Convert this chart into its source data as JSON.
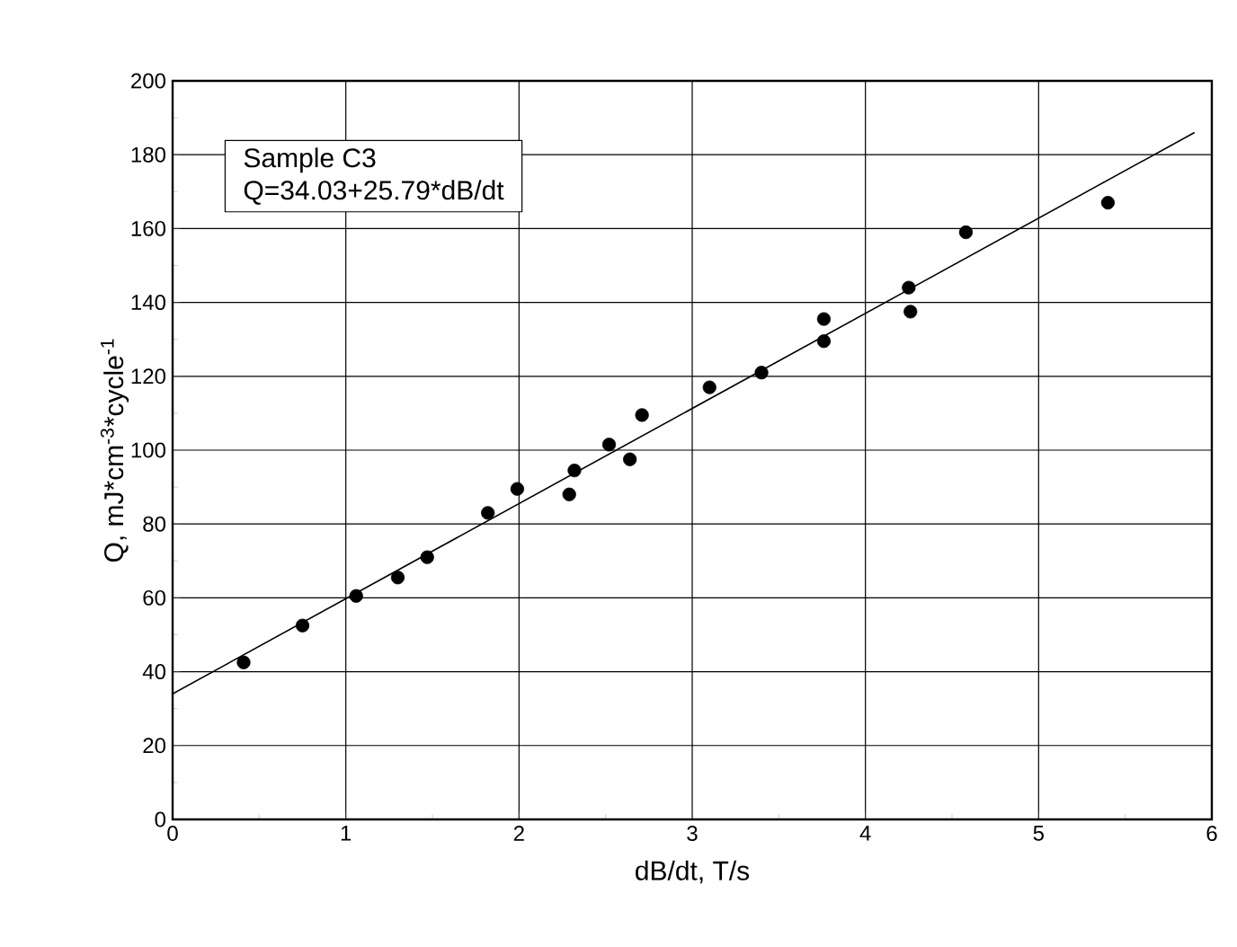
{
  "chart_data": {
    "type": "scatter",
    "xlabel": "dB/dt,  T/s",
    "ylabel": "Q, mJ*cm$^{-3}$*cycle$^{-1}$",
    "annotations": [
      "Sample C3",
      "Q=34.03+25.79*dB/dt"
    ],
    "xlim": [
      0,
      6
    ],
    "xticks": [
      0,
      1,
      2,
      3,
      4,
      5,
      6
    ],
    "ylim": [
      0,
      200
    ],
    "yticks": [
      0,
      20,
      40,
      60,
      80,
      100,
      120,
      140,
      160,
      180,
      200
    ],
    "grid": true,
    "series": [
      {
        "color": "#000000",
        "marker": "circle",
        "x": [
          0.41,
          0.75,
          1.06,
          1.3,
          1.47,
          1.82,
          1.99,
          2.29,
          2.32,
          2.52,
          2.64,
          2.71,
          3.1,
          3.4,
          3.76,
          3.76,
          4.25,
          4.26,
          4.58,
          5.4
        ],
        "values": [
          42.5,
          52.5,
          60.5,
          65.5,
          71,
          83,
          89.5,
          88,
          94.5,
          101.5,
          97.5,
          109.5,
          117,
          121,
          135.5,
          129.5,
          144,
          137.5,
          159,
          167
        ]
      },
      {
        "type": "line",
        "color": "#000000",
        "line_style": "solid",
        "marker": "none",
        "x": [
          0,
          5.9
        ],
        "values": [
          34,
          186
        ]
      }
    ]
  }
}
